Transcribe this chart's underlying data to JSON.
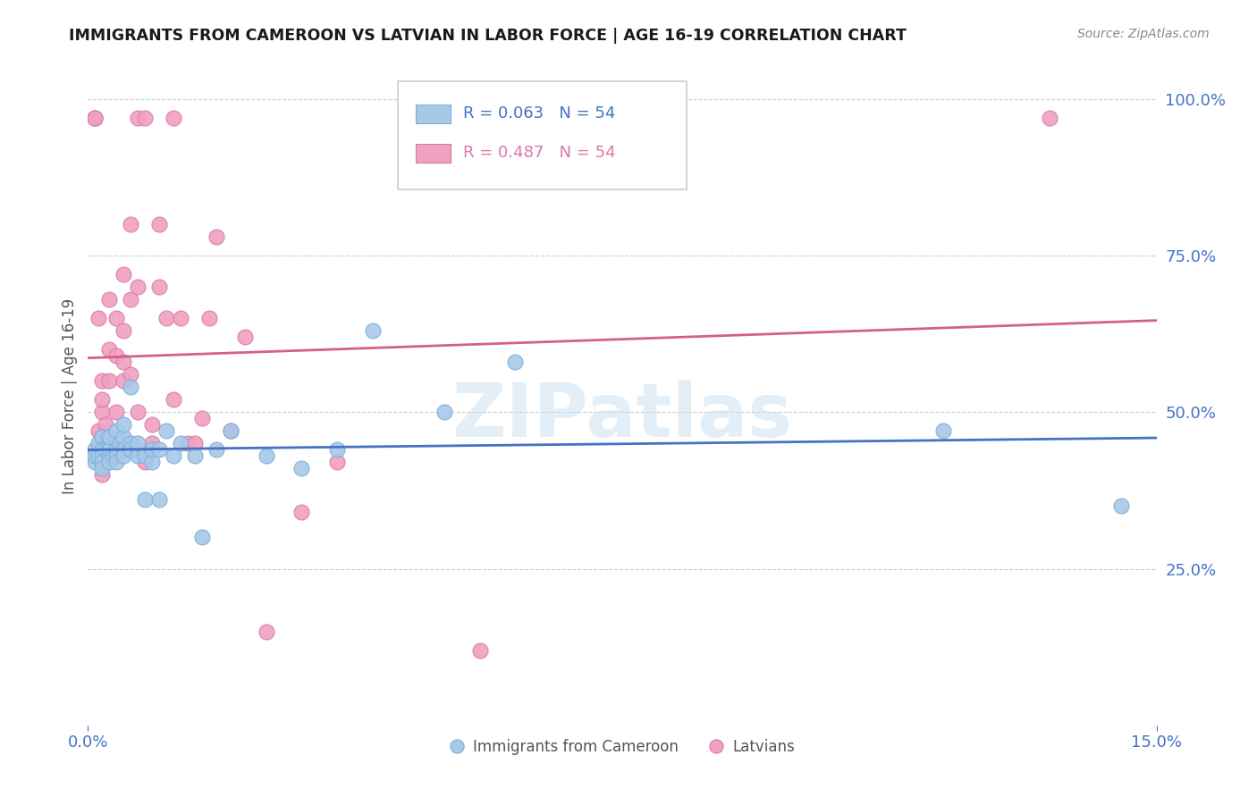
{
  "title": "IMMIGRANTS FROM CAMEROON VS LATVIAN IN LABOR FORCE | AGE 16-19 CORRELATION CHART",
  "source": "Source: ZipAtlas.com",
  "ylabel": "In Labor Force | Age 16-19",
  "xlim": [
    0.0,
    0.15
  ],
  "ylim": [
    0.0,
    1.05
  ],
  "ytick_positions": [
    0.25,
    0.5,
    0.75,
    1.0
  ],
  "ytick_labels": [
    "25.0%",
    "50.0%",
    "75.0%",
    "100.0%"
  ],
  "grid_color": "#cccccc",
  "background_color": "#ffffff",
  "watermark_text": "ZIPatlas",
  "line_color_cam": "#4472c4",
  "line_color_lat": "#d4608a",
  "scatter_face_cam": "#a8c8e8",
  "scatter_edge_cam": "#7ab0d8",
  "scatter_face_lat": "#f0a0c0",
  "scatter_edge_lat": "#d87aaa",
  "axis_label_color": "#4472c4",
  "title_color": "#1a1a1a",
  "source_color": "#888888",
  "r_cam": "0.063",
  "n_cam": "54",
  "r_lat": "0.487",
  "n_lat": "54",
  "cam_x": [
    0.0005,
    0.001,
    0.001,
    0.001,
    0.0015,
    0.0015,
    0.002,
    0.002,
    0.002,
    0.002,
    0.002,
    0.0025,
    0.003,
    0.003,
    0.003,
    0.003,
    0.003,
    0.0035,
    0.004,
    0.004,
    0.004,
    0.004,
    0.0045,
    0.005,
    0.005,
    0.005,
    0.005,
    0.006,
    0.006,
    0.006,
    0.007,
    0.007,
    0.007,
    0.008,
    0.008,
    0.009,
    0.009,
    0.01,
    0.01,
    0.011,
    0.012,
    0.013,
    0.015,
    0.016,
    0.018,
    0.02,
    0.025,
    0.03,
    0.035,
    0.04,
    0.05,
    0.06,
    0.12,
    0.145
  ],
  "cam_y": [
    0.43,
    0.44,
    0.42,
    0.43,
    0.45,
    0.43,
    0.46,
    0.44,
    0.43,
    0.42,
    0.41,
    0.44,
    0.45,
    0.43,
    0.42,
    0.44,
    0.46,
    0.43,
    0.47,
    0.44,
    0.43,
    0.42,
    0.45,
    0.46,
    0.44,
    0.43,
    0.48,
    0.45,
    0.44,
    0.54,
    0.44,
    0.43,
    0.45,
    0.43,
    0.36,
    0.42,
    0.44,
    0.36,
    0.44,
    0.47,
    0.43,
    0.45,
    0.43,
    0.3,
    0.44,
    0.47,
    0.43,
    0.41,
    0.44,
    0.63,
    0.5,
    0.58,
    0.47,
    0.35
  ],
  "lat_x": [
    0.0005,
    0.001,
    0.001,
    0.001,
    0.001,
    0.0015,
    0.0015,
    0.002,
    0.002,
    0.002,
    0.002,
    0.002,
    0.0025,
    0.003,
    0.003,
    0.003,
    0.003,
    0.003,
    0.004,
    0.004,
    0.004,
    0.004,
    0.005,
    0.005,
    0.005,
    0.005,
    0.006,
    0.006,
    0.006,
    0.007,
    0.007,
    0.007,
    0.008,
    0.008,
    0.009,
    0.009,
    0.01,
    0.01,
    0.011,
    0.012,
    0.012,
    0.013,
    0.014,
    0.015,
    0.016,
    0.017,
    0.018,
    0.02,
    0.022,
    0.025,
    0.03,
    0.035,
    0.055,
    0.135
  ],
  "lat_y": [
    0.43,
    0.97,
    0.97,
    0.97,
    0.43,
    0.65,
    0.47,
    0.55,
    0.5,
    0.52,
    0.46,
    0.4,
    0.48,
    0.55,
    0.6,
    0.46,
    0.43,
    0.68,
    0.65,
    0.59,
    0.5,
    0.45,
    0.63,
    0.58,
    0.55,
    0.72,
    0.56,
    0.68,
    0.8,
    0.7,
    0.97,
    0.5,
    0.97,
    0.42,
    0.45,
    0.48,
    0.8,
    0.7,
    0.65,
    0.97,
    0.52,
    0.65,
    0.45,
    0.45,
    0.49,
    0.65,
    0.78,
    0.47,
    0.62,
    0.15,
    0.34,
    0.42,
    0.12,
    0.97
  ]
}
